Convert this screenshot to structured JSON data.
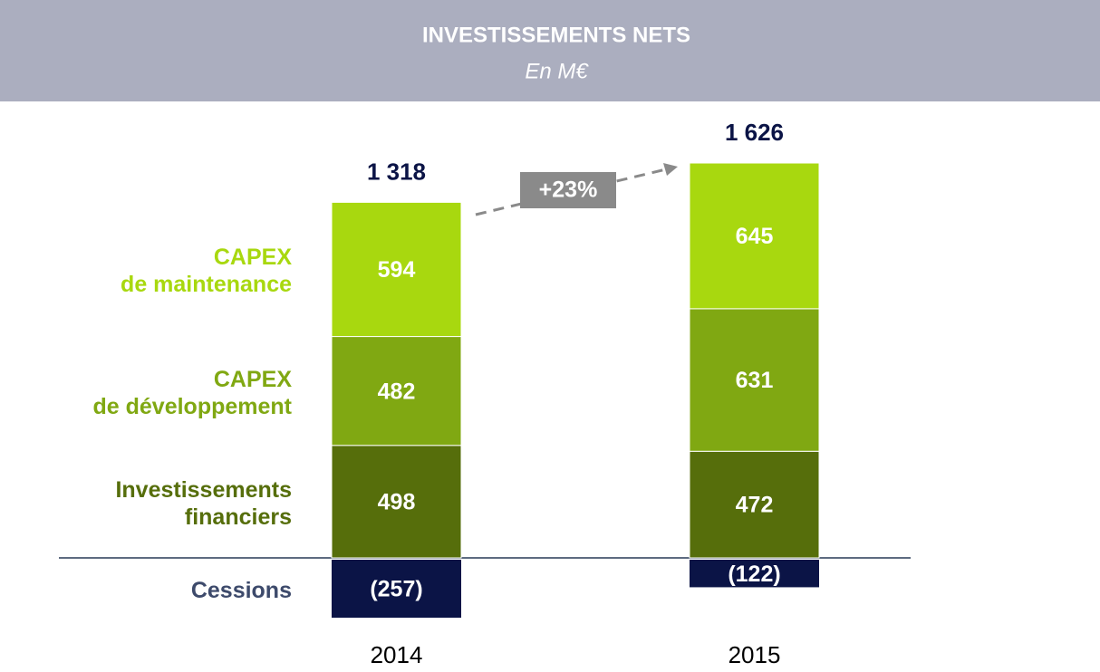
{
  "chart_data": {
    "type": "stacked_bar",
    "title": "INVESTISSEMENTS NETS",
    "subtitle": "En M€",
    "categories": [
      "2014",
      "2015"
    ],
    "series": [
      {
        "name": "Investissements\nfinanciers",
        "color": "#566e0b",
        "label_color": "#566e0b",
        "values": [
          498,
          472
        ]
      },
      {
        "name": "CAPEX\nde développement",
        "color": "#80a812",
        "label_color": "#80a812",
        "values": [
          482,
          631
        ]
      },
      {
        "name": "CAPEX\nde maintenance",
        "color": "#a8d80f",
        "label_color": "#a8d80f",
        "values": [
          594,
          645
        ]
      },
      {
        "name": "Cessions",
        "color": "#0b1446",
        "label_color": "#3d4a6b",
        "values": [
          -257,
          -122
        ],
        "value_labels": [
          "(257)",
          "(122)"
        ]
      }
    ],
    "totals": [
      1318,
      1626
    ],
    "total_labels": [
      "1 318",
      "1 626"
    ],
    "annotation": "+23%"
  }
}
